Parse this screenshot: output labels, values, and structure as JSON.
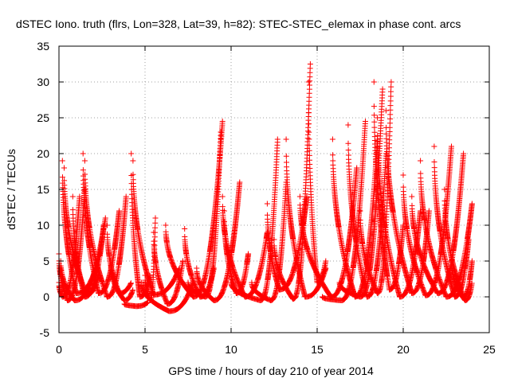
{
  "chart_data": {
    "type": "scatter",
    "title": "dSTEC Iono. truth (flrs, Lon=328, Lat=39, h=82): STEC-STEC_elemax in phase cont. arcs",
    "xlabel": "GPS time / hours of day 210 of year 2014",
    "ylabel": "dSTEC  / TECUs",
    "xlim": [
      0,
      25
    ],
    "ylim": [
      -5,
      35
    ],
    "xticks": [
      0,
      5,
      10,
      15,
      20,
      25
    ],
    "yticks": [
      -5,
      0,
      5,
      10,
      15,
      20,
      25,
      30,
      35
    ],
    "grid": true,
    "marker": "+",
    "color": "#ff0000",
    "arcs": [
      {
        "x0": 0.0,
        "xmin": 0.5,
        "x1": 1.5,
        "y0": 6,
        "ymin": -0.5,
        "y1": 15
      },
      {
        "x0": 0.0,
        "xmin": 0.2,
        "x1": 1.2,
        "y0": 2,
        "ymin": 0,
        "y1": 14
      },
      {
        "x0": 0.1,
        "xmin": 0.9,
        "x1": 2.7,
        "y0": 5,
        "ymin": -0.5,
        "y1": 11
      },
      {
        "x0": 0.2,
        "xmin": 1.0,
        "x1": 2.0,
        "y0": 19,
        "ymin": 0.5,
        "y1": 3
      },
      {
        "x0": 0.3,
        "xmin": 1.6,
        "x1": 2.3,
        "y0": 18,
        "ymin": 0.3,
        "y1": 3
      },
      {
        "x0": 1.4,
        "xmin": 2.3,
        "x1": 3.5,
        "y0": 20,
        "ymin": 0.5,
        "y1": 12
      },
      {
        "x0": 1.5,
        "xmin": 2.8,
        "x1": 3.9,
        "y0": 19,
        "ymin": 0,
        "y1": 14
      },
      {
        "x0": 0.8,
        "xmin": 1.5,
        "x1": 2.6,
        "y0": 14,
        "ymin": 0,
        "y1": 10
      },
      {
        "x0": 2.8,
        "xmin": 3.5,
        "x1": 4.2,
        "y0": 10,
        "ymin": 0.5,
        "y1": 2
      },
      {
        "x0": 3.0,
        "xmin": 3.8,
        "x1": 4.3,
        "y0": 5,
        "ymin": -0.5,
        "y1": 1
      },
      {
        "x0": 4.2,
        "xmin": 4.7,
        "x1": 5.3,
        "y0": 20,
        "ymin": 0,
        "y1": 3
      },
      {
        "x0": 4.3,
        "xmin": 5.5,
        "x1": 7.0,
        "y0": 19,
        "ymin": 0.3,
        "y1": 4
      },
      {
        "x0": 3.8,
        "xmin": 4.5,
        "x1": 5.2,
        "y0": -1,
        "ymin": -1.3,
        "y1": -0.7
      },
      {
        "x0": 4.8,
        "xmin": 6.4,
        "x1": 7.8,
        "y0": 2,
        "ymin": -2,
        "y1": 2
      },
      {
        "x0": 5.0,
        "xmin": 5.3,
        "x1": 5.6,
        "y0": 3,
        "ymin": -0.5,
        "y1": 11
      },
      {
        "x0": 5.5,
        "xmin": 6.3,
        "x1": 7.2,
        "y0": 9,
        "ymin": -1,
        "y1": 5
      },
      {
        "x0": 6.2,
        "xmin": 7.8,
        "x1": 9.5,
        "y0": 10,
        "ymin": 0,
        "y1": 24.5
      },
      {
        "x0": 7.3,
        "xmin": 8.2,
        "x1": 9.0,
        "y0": 9.5,
        "ymin": 0,
        "y1": 4
      },
      {
        "x0": 7.5,
        "xmin": 8.5,
        "x1": 9.4,
        "y0": 2,
        "ymin": 0,
        "y1": 23
      },
      {
        "x0": 8.0,
        "xmin": 9.0,
        "x1": 10.5,
        "y0": 4,
        "ymin": -0.5,
        "y1": 16
      },
      {
        "x0": 9.5,
        "xmin": 10.8,
        "x1": 12.1,
        "y0": 14,
        "ymin": 0,
        "y1": 9
      },
      {
        "x0": 9.6,
        "xmin": 10.3,
        "x1": 11.0,
        "y0": 12,
        "ymin": 0.5,
        "y1": 6
      },
      {
        "x0": 10.0,
        "xmin": 11.7,
        "x1": 12.7,
        "y0": 2,
        "ymin": -0.5,
        "y1": 22
      },
      {
        "x0": 11.2,
        "xmin": 12.3,
        "x1": 13.2,
        "y0": 2,
        "ymin": -0.5,
        "y1": 16
      },
      {
        "x0": 12.1,
        "xmin": 12.8,
        "x1": 14.4,
        "y0": 13,
        "ymin": 1,
        "y1": 14
      },
      {
        "x0": 12.5,
        "xmin": 13.6,
        "x1": 14.6,
        "y0": 8,
        "ymin": -0.3,
        "y1": 32.5
      },
      {
        "x0": 13.2,
        "xmin": 14.3,
        "x1": 15.5,
        "y0": 22,
        "ymin": 0,
        "y1": 4
      },
      {
        "x0": 14.5,
        "xmin": 15.0,
        "x1": 15.5,
        "y0": 30,
        "ymin": 2,
        "y1": 5
      },
      {
        "x0": 14.0,
        "xmin": 15.8,
        "x1": 17.3,
        "y0": 14,
        "ymin": 0,
        "y1": 18
      },
      {
        "x0": 15.3,
        "xmin": 16.4,
        "x1": 17.8,
        "y0": 0,
        "ymin": -0.5,
        "y1": 24.5
      },
      {
        "x0": 15.9,
        "xmin": 17.2,
        "x1": 18.5,
        "y0": 22,
        "ymin": 0,
        "y1": 22
      },
      {
        "x0": 16.3,
        "xmin": 17.5,
        "x1": 18.8,
        "y0": 2,
        "ymin": 0,
        "y1": 29
      },
      {
        "x0": 16.8,
        "xmin": 17.9,
        "x1": 19.0,
        "y0": 24,
        "ymin": 0,
        "y1": 20
      },
      {
        "x0": 17.5,
        "xmin": 18.5,
        "x1": 19.3,
        "y0": 12,
        "ymin": 0.5,
        "y1": 30
      },
      {
        "x0": 18.3,
        "xmin": 19.2,
        "x1": 20.0,
        "y0": 30,
        "ymin": 1,
        "y1": 10
      },
      {
        "x0": 18.5,
        "xmin": 19.8,
        "x1": 21.0,
        "y0": 25,
        "ymin": 0,
        "y1": 12
      },
      {
        "x0": 19.0,
        "xmin": 20.5,
        "x1": 21.5,
        "y0": 26,
        "ymin": 0.5,
        "y1": 12
      },
      {
        "x0": 20.0,
        "xmin": 21.3,
        "x1": 22.8,
        "y0": 17,
        "ymin": 0.2,
        "y1": 21
      },
      {
        "x0": 20.5,
        "xmin": 22.0,
        "x1": 23.5,
        "y0": 14,
        "ymin": 0.5,
        "y1": 20
      },
      {
        "x0": 21.0,
        "xmin": 22.5,
        "x1": 24.0,
        "y0": 19,
        "ymin": 0,
        "y1": 13
      },
      {
        "x0": 21.8,
        "xmin": 23.0,
        "x1": 23.8,
        "y0": 21,
        "ymin": 0,
        "y1": 8
      },
      {
        "x0": 22.4,
        "xmin": 23.5,
        "x1": 24.0,
        "y0": 15,
        "ymin": 0,
        "y1": 5
      },
      {
        "x0": 22.8,
        "xmin": 23.6,
        "x1": 24.0,
        "y0": 5,
        "ymin": -0.5,
        "y1": 2
      }
    ]
  }
}
